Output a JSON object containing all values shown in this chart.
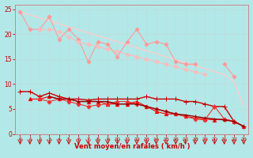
{
  "bg_color": "#b2e8e8",
  "grid_color": "#cceeee",
  "xlabel": "Vent moyen/en rafales ( km/h )",
  "xlabel_color": "#cc0000",
  "tick_color": "#cc0000",
  "arrow_color": "#cc0000",
  "x_values": [
    0,
    1,
    2,
    3,
    4,
    5,
    6,
    7,
    8,
    9,
    10,
    11,
    12,
    13,
    14,
    15,
    16,
    17,
    18,
    19,
    20,
    21,
    22,
    23
  ],
  "ylim": [
    0,
    26
  ],
  "xlim": [
    -0.5,
    23.5
  ],
  "lines": [
    {
      "y": [
        24.5,
        23.9,
        23.3,
        22.7,
        22.1,
        21.5,
        20.9,
        20.3,
        19.7,
        19.1,
        18.5,
        17.9,
        17.3,
        16.7,
        16.1,
        15.5,
        14.9,
        14.3,
        13.7,
        13.1,
        12.5,
        11.9,
        10.5,
        5.5
      ],
      "color": "#ffcccc",
      "marker": null,
      "linewidth": 1.0,
      "linestyle": "-"
    },
    {
      "y": [
        24.5,
        21.0,
        21.0,
        23.5,
        19.0,
        21.0,
        19.0,
        14.5,
        18.5,
        18.0,
        15.5,
        18.5,
        21.0,
        18.0,
        18.5,
        18.0,
        14.5,
        14.0,
        14.0,
        null,
        null,
        14.0,
        11.5,
        null
      ],
      "color": "#ff9999",
      "marker": "D",
      "markersize": 2.5,
      "linewidth": 0.8,
      "linestyle": "-"
    },
    {
      "y": [
        null,
        null,
        21.0,
        21.0,
        20.5,
        19.5,
        18.5,
        18.0,
        17.5,
        17.0,
        16.5,
        16.0,
        15.5,
        15.0,
        14.5,
        14.0,
        13.5,
        13.0,
        12.5,
        12.0,
        null,
        null,
        null,
        null
      ],
      "color": "#ffbbbb",
      "marker": "D",
      "markersize": 2.5,
      "linewidth": 0.8,
      "linestyle": "-"
    },
    {
      "y": [
        8.5,
        8.5,
        7.5,
        8.2,
        7.5,
        7.0,
        7.0,
        6.8,
        7.0,
        7.0,
        7.0,
        7.0,
        7.0,
        7.5,
        7.0,
        7.0,
        7.0,
        6.5,
        6.5,
        6.0,
        5.5,
        5.5,
        2.5,
        1.5
      ],
      "color": "#cc0000",
      "marker": "+",
      "markersize": 4,
      "linewidth": 1.0,
      "linestyle": "-"
    },
    {
      "y": [
        null,
        7.0,
        7.0,
        7.5,
        7.0,
        7.0,
        6.5,
        6.5,
        6.5,
        6.0,
        6.0,
        6.0,
        6.5,
        5.5,
        4.5,
        4.0,
        4.0,
        3.5,
        3.2,
        3.0,
        2.8,
        3.0,
        2.5,
        1.5
      ],
      "color": "#ff0000",
      "marker": "^",
      "markersize": 3,
      "linewidth": 0.8,
      "linestyle": "-"
    },
    {
      "y": [
        null,
        null,
        7.0,
        6.5,
        7.0,
        6.5,
        6.0,
        5.5,
        5.8,
        6.0,
        6.5,
        6.5,
        6.0,
        5.5,
        5.0,
        4.5,
        4.0,
        3.5,
        3.0,
        2.8,
        5.5,
        3.0,
        2.5,
        null
      ],
      "color": "#ee3333",
      "marker": "D",
      "markersize": 2.5,
      "linewidth": 0.8,
      "linestyle": "-"
    },
    {
      "y": [
        null,
        null,
        null,
        7.5,
        7.0,
        7.0,
        6.5,
        6.5,
        6.5,
        6.5,
        6.0,
        6.0,
        6.0,
        5.5,
        5.0,
        4.5,
        4.0,
        3.8,
        3.5,
        3.2,
        3.0,
        2.8,
        2.5,
        1.5
      ],
      "color": "#990000",
      "marker": "+",
      "markersize": 3,
      "linewidth": 1.0,
      "linestyle": "-"
    }
  ]
}
